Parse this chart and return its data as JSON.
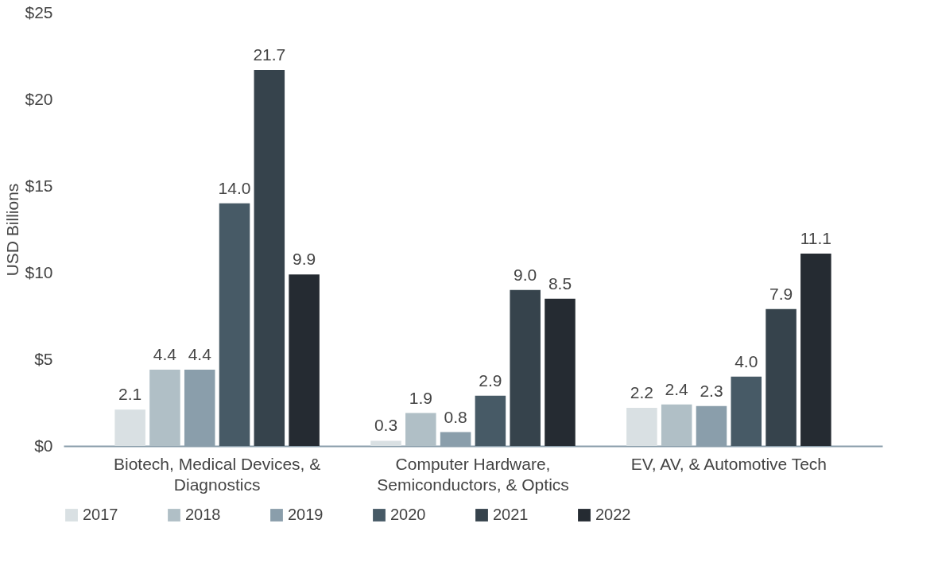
{
  "chart_data": {
    "type": "bar",
    "ylabel": "USD Billions",
    "categories": [
      "Biotech, Medical Devices, & Diagnostics",
      "Computer Hardware, Semiconductors, & Optics",
      "EV, AV, & Automotive Tech"
    ],
    "series": [
      {
        "name": "2017",
        "color": "#d9e0e3",
        "values": [
          2.1,
          0.3,
          2.2
        ],
        "value_labels": [
          "2.1",
          "0.3",
          "2.2"
        ]
      },
      {
        "name": "2018",
        "color": "#b0bfc6",
        "values": [
          4.4,
          1.9,
          2.4
        ],
        "value_labels": [
          "4.4",
          "1.9",
          "2.4"
        ]
      },
      {
        "name": "2019",
        "color": "#8a9eab",
        "values": [
          4.4,
          0.8,
          2.3
        ],
        "value_labels": [
          "4.4",
          "0.8",
          "2.3"
        ]
      },
      {
        "name": "2020",
        "color": "#475a66",
        "values": [
          14.0,
          2.9,
          4.0
        ],
        "value_labels": [
          "14.0",
          "2.9",
          "4.0"
        ]
      },
      {
        "name": "2021",
        "color": "#36434c",
        "values": [
          21.7,
          9.0,
          7.9
        ],
        "value_labels": [
          "21.7",
          "9.0",
          "7.9"
        ]
      },
      {
        "name": "2022",
        "color": "#252b32",
        "values": [
          9.9,
          8.5,
          11.1
        ],
        "value_labels": [
          "9.9",
          "8.5",
          "11.1"
        ]
      }
    ],
    "ylim": [
      0,
      25
    ],
    "yticks": [
      {
        "value": 0,
        "label": "$0"
      },
      {
        "value": 5,
        "label": "$5"
      },
      {
        "value": 10,
        "label": "$10"
      },
      {
        "value": 15,
        "label": "$15"
      },
      {
        "value": 20,
        "label": "$20"
      },
      {
        "value": 25,
        "label": "$25"
      }
    ],
    "legend": "bottom",
    "grid": false
  }
}
